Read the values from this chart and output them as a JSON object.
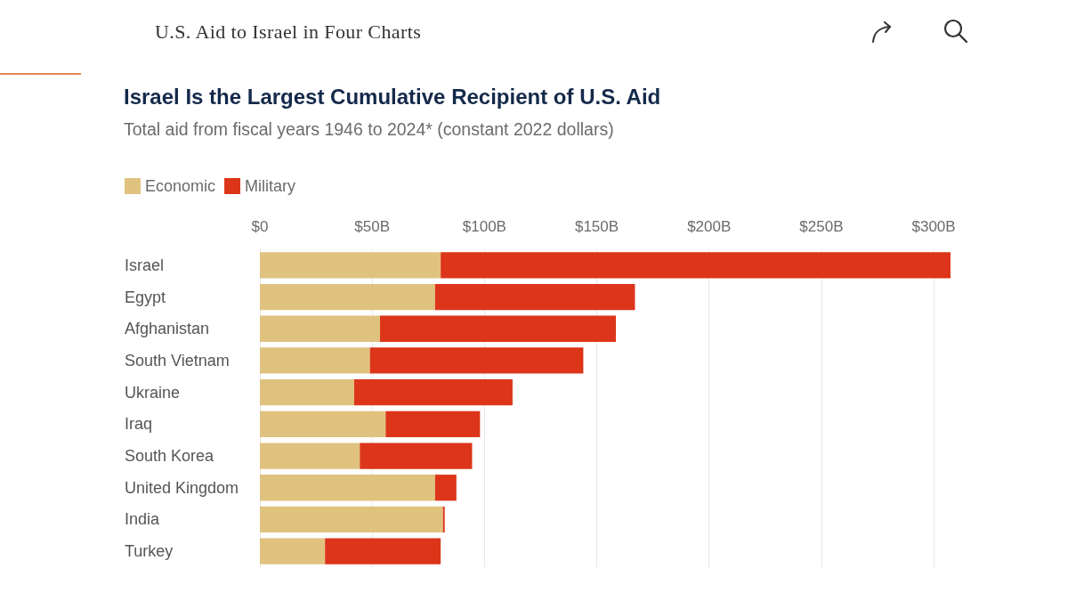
{
  "chart_data": {
    "type": "bar",
    "orientation": "horizontal",
    "stacked": true,
    "title": "Israel Is the Largest Cumulative Recipient of U.S. Aid",
    "subtitle": "Total aid from fiscal years 1946 to 2024* (constant 2022 dollars)",
    "annotations": [
      "U.S. Aid to Israel in Four Charts"
    ],
    "categories": [
      "Israel",
      "Egypt",
      "Afghanistan",
      "South Vietnam",
      "Ukraine",
      "Iraq",
      "South Korea",
      "United Kingdom",
      "India",
      "Turkey"
    ],
    "series": [
      {
        "name": "Economic",
        "color": "#e0c27f",
        "values": [
          80.5,
          78,
          53.5,
          49,
          42,
          56,
          44.5,
          78,
          81.5,
          29
        ]
      },
      {
        "name": "Military",
        "color": "#dc3519",
        "values": [
          227,
          89,
          105,
          95,
          70.5,
          42,
          50,
          9.5,
          0.8,
          51.5
        ]
      }
    ],
    "xlim": [
      0,
      307.5
    ],
    "xticks": [
      {
        "value": 0,
        "label": "$0"
      },
      {
        "value": 50,
        "label": "$50B"
      },
      {
        "value": 100,
        "label": "$100B"
      },
      {
        "value": 150,
        "label": "$150B"
      },
      {
        "value": 200,
        "label": "$200B"
      },
      {
        "value": 250,
        "label": "$250B"
      },
      {
        "value": 300,
        "label": "$300B"
      }
    ],
    "grid": "x",
    "legend": "top left"
  }
}
